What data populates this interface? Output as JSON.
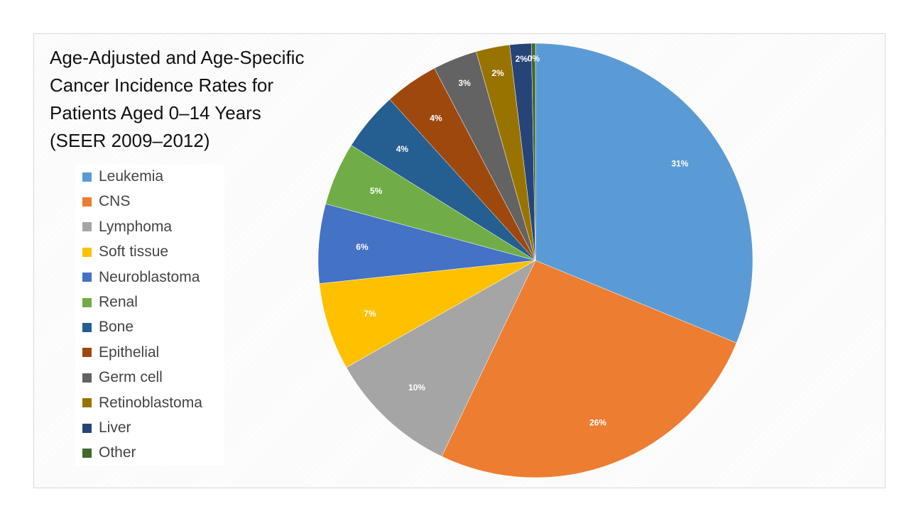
{
  "chart_data": {
    "type": "pie",
    "title": "Age-Adjusted and Age-Specific Cancer Incidence Rates for Patients Aged 0–14 Years (SEER 2009–2012)",
    "title_lines": [
      "Age-Adjusted and Age-Specific",
      "Cancer Incidence Rates for",
      "Patients Aged 0–14 Years",
      "(SEER 2009–2012)"
    ],
    "legend_position": "left",
    "slices": [
      {
        "label": "Leukemia",
        "value": 31.2,
        "data_label": "31%",
        "color": "#5b9bd5"
      },
      {
        "label": "CNS",
        "value": 25.9,
        "data_label": "26%",
        "color": "#ed7d31"
      },
      {
        "label": "Lymphoma",
        "value": 9.7,
        "data_label": "10%",
        "color": "#a5a5a5"
      },
      {
        "label": "Soft tissue",
        "value": 6.5,
        "data_label": "7%",
        "color": "#ffc000"
      },
      {
        "label": "Neuroblastoma",
        "value": 5.9,
        "data_label": "6%",
        "color": "#4472c4"
      },
      {
        "label": "Renal",
        "value": 4.7,
        "data_label": "5%",
        "color": "#70ad47"
      },
      {
        "label": "Bone",
        "value": 4.4,
        "data_label": "4%",
        "color": "#255e91"
      },
      {
        "label": "Epithelial",
        "value": 4.0,
        "data_label": "4%",
        "color": "#9e480e"
      },
      {
        "label": "Germ cell",
        "value": 3.3,
        "data_label": "3%",
        "color": "#636363"
      },
      {
        "label": "Retinoblastoma",
        "value": 2.5,
        "data_label": "2%",
        "color": "#997300"
      },
      {
        "label": "Liver",
        "value": 1.6,
        "data_label": "2%",
        "color": "#264478"
      },
      {
        "label": "Other",
        "value": 0.3,
        "data_label": "0%",
        "color": "#43682b"
      }
    ]
  }
}
